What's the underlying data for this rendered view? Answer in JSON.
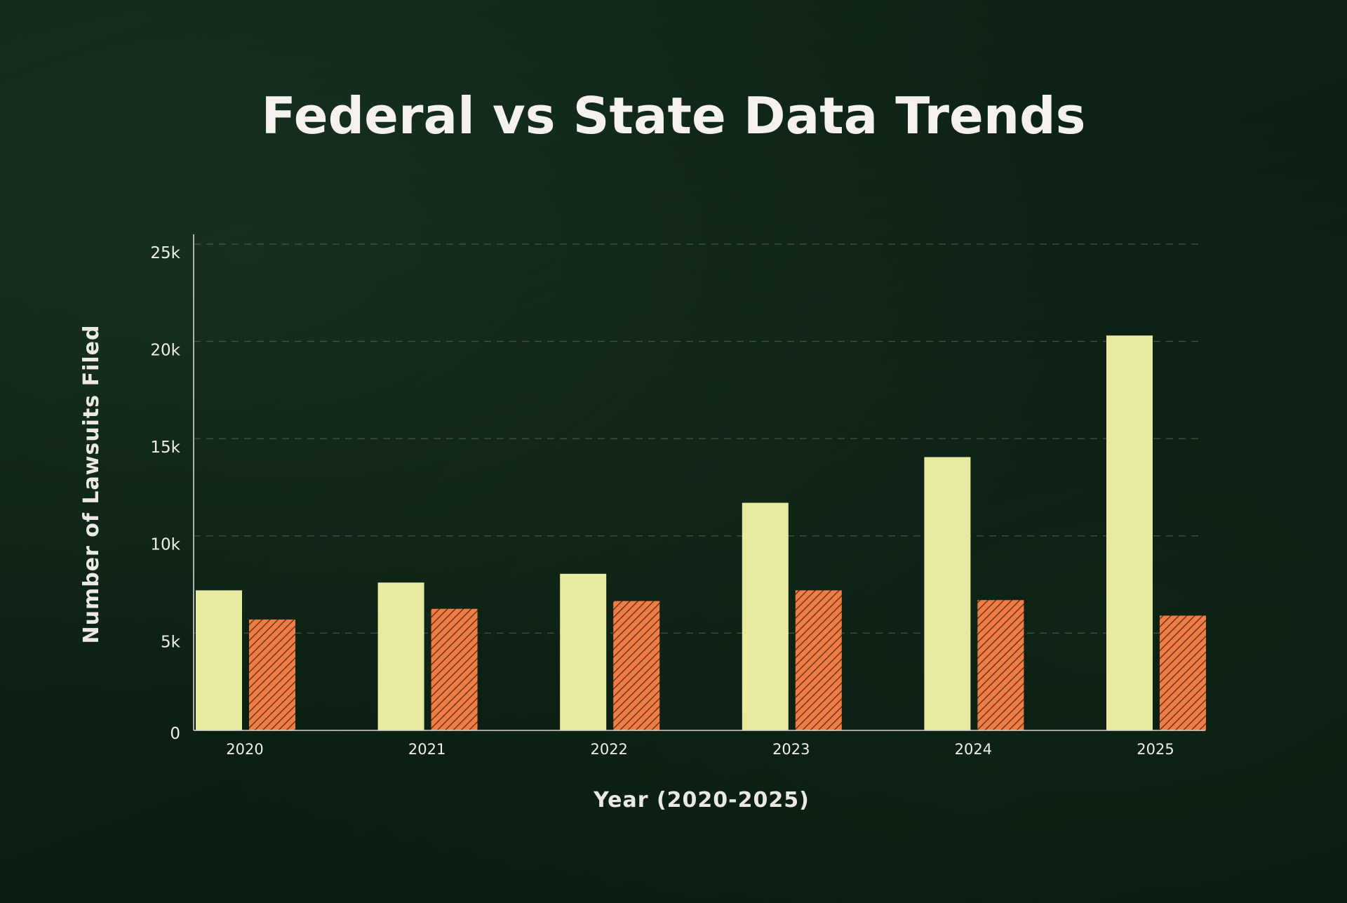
{
  "colors": {
    "background": "#0b2013",
    "federal_bar": "#e8eb9f",
    "state_bar": "#ef7d45",
    "state_hatch": "#5c2a14",
    "text": "#f4f1ee"
  },
  "chart_data": {
    "type": "bar",
    "title": "Federal vs State Data Trends",
    "xlabel": "Year (2020-2025)",
    "ylabel": "Number of Lawsuits Filed",
    "categories": [
      "2020",
      "2021",
      "2022",
      "2023",
      "2024",
      "2025"
    ],
    "ylim": [
      0,
      25500
    ],
    "yticks": [
      0,
      5000,
      10000,
      15000,
      20000,
      25000
    ],
    "ytick_labels": [
      "0",
      "5k",
      "10k",
      "15k",
      "20k",
      "25k"
    ],
    "grid": true,
    "legend": "none",
    "series": [
      {
        "values": [
          7200,
          7600,
          8050,
          11700,
          14050,
          20300
        ],
        "color": "#e8eb9f",
        "pattern": "solid"
      },
      {
        "values": [
          5700,
          6250,
          6650,
          7200,
          6700,
          5900
        ],
        "color": "#ef7d45",
        "pattern": "hatched"
      }
    ]
  }
}
